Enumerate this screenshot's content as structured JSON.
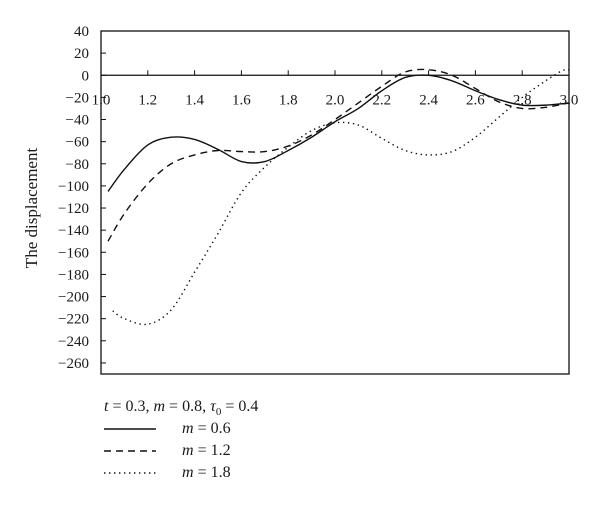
{
  "chart_data": {
    "type": "line",
    "title": "",
    "xlabel": "",
    "ylabel": "The displacement",
    "xlim": [
      1.0,
      3.0
    ],
    "ylim": [
      -270,
      40
    ],
    "x_ticks": [
      1.0,
      1.2,
      1.4,
      1.6,
      1.8,
      2.0,
      2.2,
      2.4,
      2.6,
      2.8,
      3.0
    ],
    "x_tick_labels": [
      "1.0",
      "1.2",
      "1.4",
      "1.6",
      "1.8",
      "2.0",
      "2.2",
      "2.4",
      "2.6",
      "2.8",
      "3.0"
    ],
    "y_ticks": [
      40,
      20,
      0,
      -20,
      -40,
      -60,
      -80,
      -100,
      -120,
      -140,
      -160,
      -180,
      -200,
      -220,
      -240,
      -260
    ],
    "y_tick_labels": [
      "40",
      "20",
      "0",
      "−20",
      "−40",
      "−60",
      "−80",
      "−100",
      "−120",
      "−140",
      "−160",
      "−180",
      "−200",
      "−220",
      "−240",
      "−260"
    ],
    "grid": false,
    "legend_position": "bottom-left",
    "legend_parameters": {
      "t_label": "t",
      "t_value": "0.3",
      "m_label": "m",
      "m_value": "0.8",
      "tau_label": "τ",
      "tau_sub": "0",
      "tau_value": "0.4"
    },
    "series": [
      {
        "name": "m = 0.6",
        "name_var": "m",
        "name_value": "0.6",
        "style": "solid",
        "x": [
          1.03,
          1.1,
          1.2,
          1.3,
          1.4,
          1.5,
          1.6,
          1.7,
          1.8,
          1.9,
          2.0,
          2.1,
          2.2,
          2.3,
          2.4,
          2.5,
          2.6,
          2.7,
          2.8,
          2.9,
          3.0
        ],
        "y": [
          -105,
          -85,
          -63,
          -56,
          -58,
          -67,
          -78,
          -78,
          -68,
          -56,
          -42,
          -30,
          -14,
          -2,
          0,
          -5,
          -14,
          -22,
          -27,
          -27,
          -25
        ]
      },
      {
        "name": "m = 1.2",
        "name_var": "m",
        "name_value": "1.2",
        "style": "dashed",
        "x": [
          1.03,
          1.1,
          1.2,
          1.3,
          1.4,
          1.5,
          1.6,
          1.7,
          1.8,
          1.9,
          2.0,
          2.1,
          2.2,
          2.3,
          2.4,
          2.5,
          2.6,
          2.7,
          2.8,
          2.9,
          3.0
        ],
        "y": [
          -150,
          -125,
          -98,
          -80,
          -72,
          -68,
          -69,
          -69,
          -64,
          -54,
          -40,
          -25,
          -10,
          3,
          5,
          0,
          -12,
          -24,
          -30,
          -29,
          -25
        ]
      },
      {
        "name": "m = 1.8",
        "name_var": "m",
        "name_value": "1.8",
        "style": "dotted",
        "x": [
          1.05,
          1.1,
          1.2,
          1.3,
          1.4,
          1.5,
          1.6,
          1.7,
          1.8,
          1.9,
          2.0,
          2.1,
          2.2,
          2.3,
          2.4,
          2.5,
          2.6,
          2.7,
          2.8,
          2.9,
          2.97,
          3.0
        ],
        "y": [
          -213,
          -220,
          -225,
          -212,
          -178,
          -143,
          -106,
          -83,
          -65,
          -50,
          -43,
          -45,
          -57,
          -68,
          -72,
          -69,
          -56,
          -38,
          -20,
          -5,
          4,
          5
        ]
      }
    ]
  }
}
